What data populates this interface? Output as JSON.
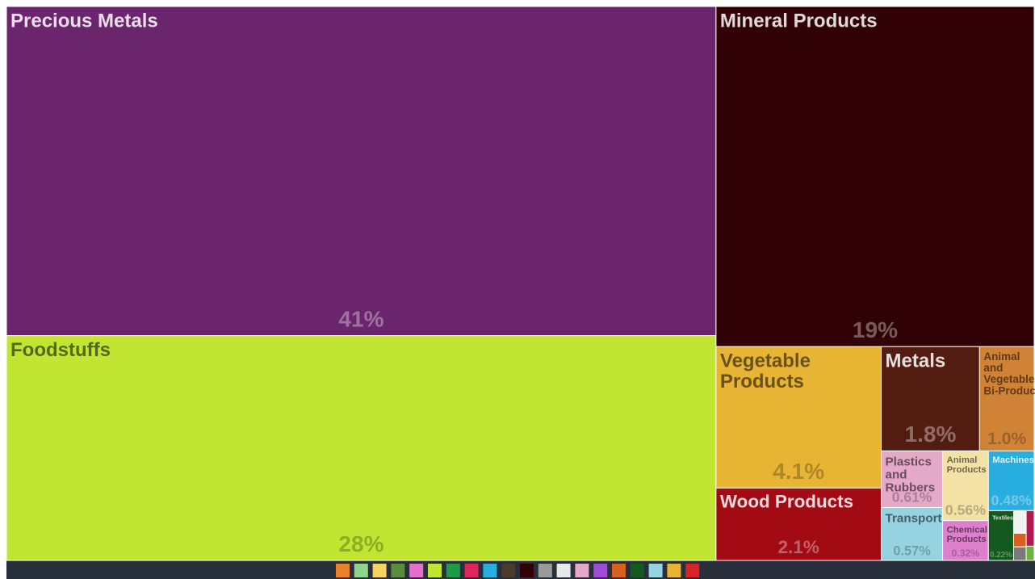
{
  "chart_data": {
    "type": "treemap",
    "categories": [
      "Precious Metals",
      "Foodstuffs",
      "Mineral Products",
      "Vegetable Products",
      "Wood Products",
      "Metals",
      "Animal and Vegetable Bi-Products",
      "Plastics and Rubbers",
      "Transportation",
      "Animal Products",
      "Chemical Products",
      "Machines",
      "Textiles",
      null,
      null,
      null,
      null,
      null
    ],
    "values": [
      41,
      28,
      19,
      4.1,
      2.1,
      1.8,
      1.0,
      0.61,
      0.57,
      0.56,
      0.32,
      0.48,
      0.22,
      0.05,
      0.03,
      0.03,
      0.05,
      0.02
    ],
    "value_labels": [
      "41%",
      "28%",
      "19%",
      "4.1%",
      "2.1%",
      "1.8%",
      "1.0%",
      "0.61%",
      "0.57%",
      "0.56%",
      "0.32%",
      "0.48%",
      "0.22%",
      null,
      null,
      null,
      null,
      null
    ],
    "colors": [
      "#6b256c",
      "#c2e532",
      "#310205",
      "#e8b434",
      "#a30b14",
      "#521d10",
      "#d08236",
      "#e4a8c8",
      "#95d3e0",
      "#f4e1a5",
      "#dd7fcd",
      "#29aee0",
      "#14591d",
      "#f2f2f2",
      "#d9611f",
      "#7a7a7a",
      "#b5174f",
      "#6cb33e"
    ]
  }
}
